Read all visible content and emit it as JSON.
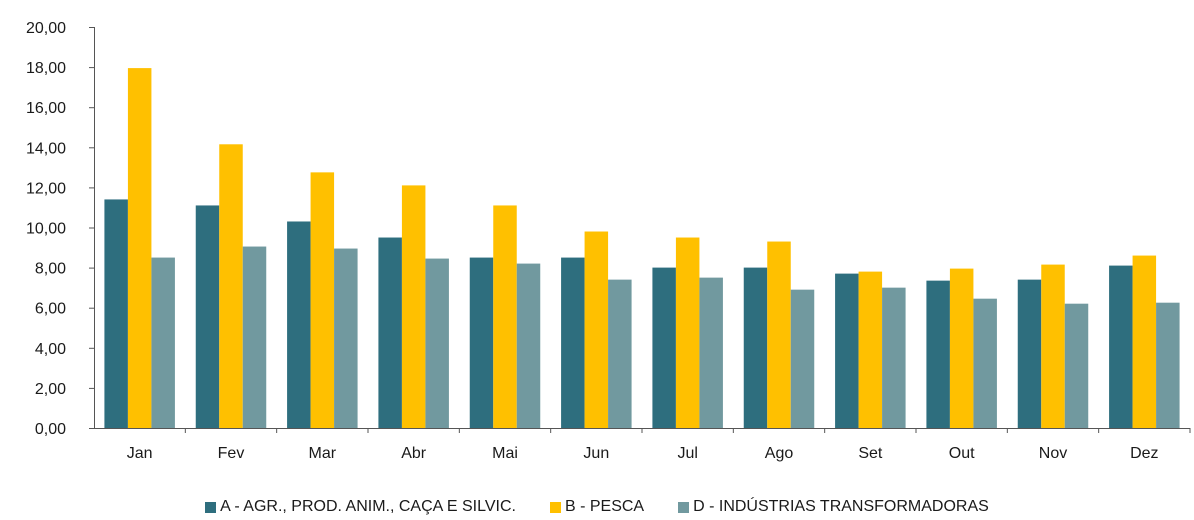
{
  "chart_data": {
    "type": "bar",
    "categories": [
      "Jan",
      "Fev",
      "Mar",
      "Abr",
      "Mai",
      "Jun",
      "Jul",
      "Ago",
      "Set",
      "Out",
      "Nov",
      "Dez"
    ],
    "series": [
      {
        "name": "A - AGR., PROD. ANIM., CAÇA E SILVIC.",
        "color": "#2E6E7E",
        "values": [
          11.4,
          11.1,
          10.3,
          9.5,
          8.5,
          8.5,
          8.0,
          8.0,
          7.7,
          7.35,
          7.4,
          8.1
        ]
      },
      {
        "name": "B - PESCA",
        "color": "#FFC000",
        "values": [
          17.95,
          14.15,
          12.75,
          12.1,
          11.1,
          9.8,
          9.5,
          9.3,
          7.8,
          7.95,
          8.15,
          8.6
        ]
      },
      {
        "name": "D - INDÚSTRIAS TRANSFORMADORAS",
        "color": "#71999F",
        "values": [
          8.5,
          9.05,
          8.95,
          8.45,
          8.2,
          7.4,
          7.5,
          6.9,
          7.0,
          6.45,
          6.2,
          6.25
        ]
      }
    ],
    "y_ticks": [
      "0,00",
      "2,00",
      "4,00",
      "6,00",
      "8,00",
      "10,00",
      "12,00",
      "14,00",
      "16,00",
      "18,00",
      "20,00"
    ],
    "ylim": [
      0,
      20
    ],
    "title": "",
    "xlabel": "",
    "ylabel": "",
    "grid": false,
    "legend_position": "bottom"
  }
}
